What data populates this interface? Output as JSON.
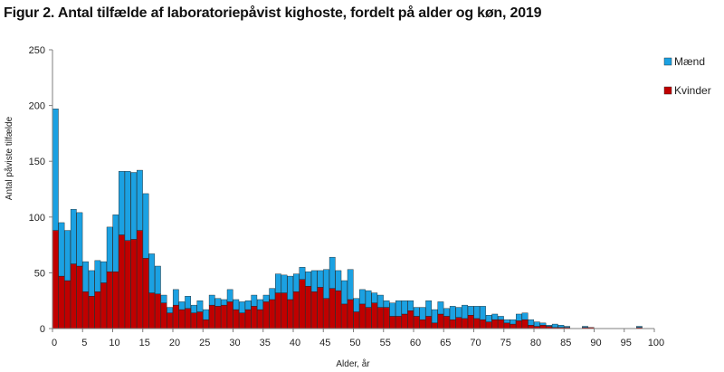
{
  "chart_data": {
    "type": "bar",
    "stacked": true,
    "title": "Figur 2. Antal tilfælde af laboratoriepåvist kighoste, fordelt på alder og køn, 2019",
    "xlabel": "Alder, år",
    "ylabel": "Antal påviste tilfælde",
    "ylim": [
      0,
      250
    ],
    "yticks": [
      0,
      50,
      100,
      150,
      200,
      250
    ],
    "xlim": [
      0,
      100
    ],
    "xticks": [
      0,
      5,
      10,
      15,
      20,
      25,
      30,
      35,
      40,
      45,
      50,
      55,
      60,
      65,
      70,
      75,
      80,
      85,
      90,
      95,
      100
    ],
    "grid": false,
    "legend_position": "right",
    "x": [
      0,
      1,
      2,
      3,
      4,
      5,
      6,
      7,
      8,
      9,
      10,
      11,
      12,
      13,
      14,
      15,
      16,
      17,
      18,
      19,
      20,
      21,
      22,
      23,
      24,
      25,
      26,
      27,
      28,
      29,
      30,
      31,
      32,
      33,
      34,
      35,
      36,
      37,
      38,
      39,
      40,
      41,
      42,
      43,
      44,
      45,
      46,
      47,
      48,
      49,
      50,
      51,
      52,
      53,
      54,
      55,
      56,
      57,
      58,
      59,
      60,
      61,
      62,
      63,
      64,
      65,
      66,
      67,
      68,
      69,
      70,
      71,
      72,
      73,
      74,
      75,
      76,
      77,
      78,
      79,
      80,
      81,
      82,
      83,
      84,
      85,
      86,
      87,
      88,
      89,
      90,
      91,
      92,
      93,
      94,
      95,
      96,
      97,
      98,
      99
    ],
    "series": [
      {
        "name": "Kvinder",
        "color": "#c00000",
        "values": [
          88,
          47,
          43,
          58,
          56,
          33,
          29,
          33,
          41,
          51,
          51,
          84,
          79,
          80,
          88,
          63,
          32,
          31,
          23,
          14,
          21,
          17,
          18,
          14,
          15,
          8,
          21,
          20,
          21,
          24,
          17,
          14,
          17,
          20,
          17,
          24,
          26,
          32,
          32,
          26,
          33,
          44,
          38,
          33,
          37,
          27,
          36,
          34,
          22,
          26,
          15,
          22,
          19,
          23,
          19,
          19,
          11,
          11,
          13,
          16,
          11,
          8,
          11,
          5,
          13,
          11,
          8,
          10,
          9,
          12,
          9,
          8,
          6,
          8,
          8,
          5,
          4,
          7,
          8,
          3,
          2,
          3,
          2,
          1,
          1,
          1,
          0,
          0,
          1,
          1,
          0,
          0,
          0,
          0,
          0,
          0,
          0,
          1,
          0,
          0
        ]
      },
      {
        "name": "Mænd",
        "color": "#1ba1e2",
        "values": [
          109,
          48,
          45,
          49,
          48,
          27,
          23,
          28,
          19,
          40,
          51,
          57,
          62,
          60,
          54,
          58,
          35,
          25,
          7,
          5,
          14,
          7,
          11,
          7,
          10,
          9,
          9,
          7,
          5,
          11,
          9,
          10,
          8,
          10,
          9,
          6,
          10,
          17,
          16,
          21,
          16,
          11,
          13,
          19,
          15,
          26,
          28,
          18,
          21,
          27,
          12,
          13,
          15,
          9,
          11,
          6,
          12,
          14,
          12,
          9,
          8,
          11,
          14,
          12,
          11,
          7,
          12,
          9,
          12,
          8,
          11,
          12,
          6,
          5,
          3,
          3,
          4,
          6,
          6,
          5,
          4,
          2,
          1,
          3,
          2,
          1,
          0,
          0,
          1,
          0,
          0,
          0,
          0,
          0,
          0,
          0,
          0,
          1,
          0,
          0
        ]
      }
    ]
  }
}
